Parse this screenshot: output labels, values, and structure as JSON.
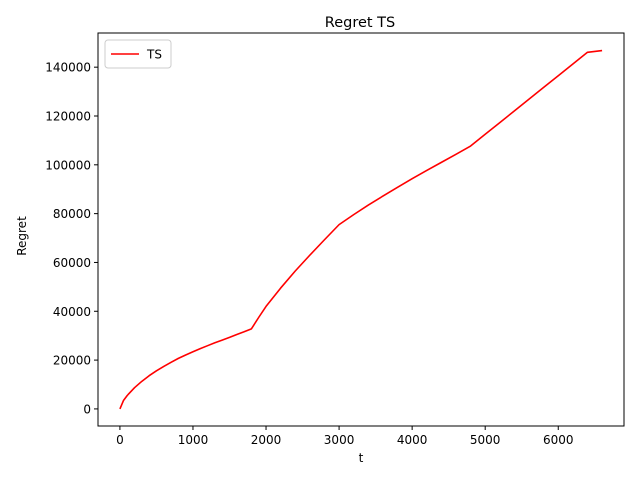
{
  "chart_data": {
    "type": "line",
    "title": "Regret TS",
    "xlabel": "t",
    "ylabel": "Regret",
    "xlim": [
      -300,
      6900
    ],
    "ylim": [
      -7000,
      154000
    ],
    "xticks": [
      0,
      1000,
      2000,
      3000,
      4000,
      5000,
      6000
    ],
    "yticks": [
      0,
      20000,
      40000,
      60000,
      80000,
      100000,
      120000,
      140000
    ],
    "grid": false,
    "legend_position": "top-left",
    "series": [
      {
        "name": "TS",
        "color": "#ff0000",
        "x": [
          0,
          50,
          100,
          200,
          300,
          400,
          500,
          600,
          700,
          800,
          900,
          1000,
          1100,
          1200,
          1300,
          1400,
          1500,
          1600,
          1700,
          1800,
          1900,
          2000,
          2200,
          2400,
          2600,
          2800,
          3000,
          3200,
          3400,
          3600,
          3800,
          4000,
          4200,
          4400,
          4600,
          4800,
          5000,
          5200,
          5400,
          5600,
          5800,
          6000,
          6200,
          6400,
          6600
        ],
        "y": [
          0,
          3500,
          5500,
          8700,
          11300,
          13600,
          15600,
          17400,
          19100,
          20700,
          22100,
          23400,
          24700,
          25900,
          27100,
          28200,
          29300,
          30500,
          31600,
          32800,
          37500,
          42000,
          49500,
          56500,
          63000,
          69300,
          75500,
          79600,
          83500,
          87200,
          90800,
          94300,
          97700,
          101000,
          104300,
          107700,
          112500,
          117300,
          122100,
          126900,
          131700,
          136500,
          141300,
          146100,
          146800
        ]
      }
    ]
  }
}
